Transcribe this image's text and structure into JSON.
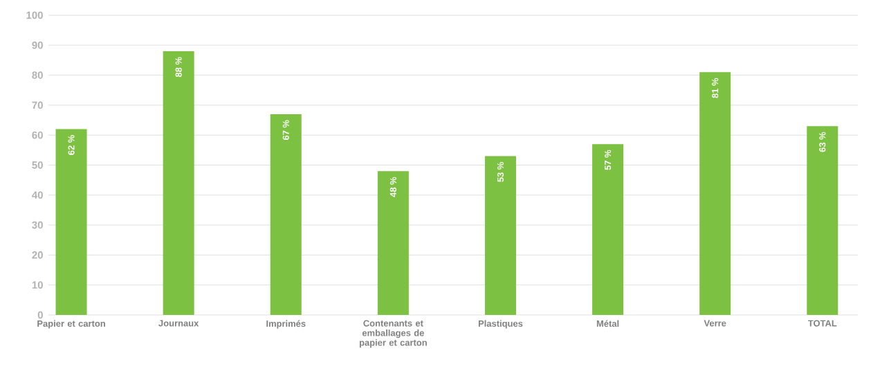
{
  "chart_data": {
    "type": "bar",
    "categories": [
      "Papier et carton",
      "Journaux",
      "Imprimés",
      "Contenants et emballages de papier et carton",
      "Plastiques",
      "Métal",
      "Verre",
      "TOTAL"
    ],
    "values": [
      62,
      88,
      67,
      48,
      53,
      57,
      81,
      63
    ],
    "value_labels": [
      "62 %",
      "88 %",
      "67 %",
      "48 %",
      "53 %",
      "57 %",
      "81 %",
      "63 %"
    ],
    "color": "#7dc142",
    "ylim": [
      0,
      100
    ],
    "yticks": [
      0,
      10,
      20,
      30,
      40,
      50,
      60,
      70,
      80,
      90,
      100
    ],
    "grid": "y"
  }
}
